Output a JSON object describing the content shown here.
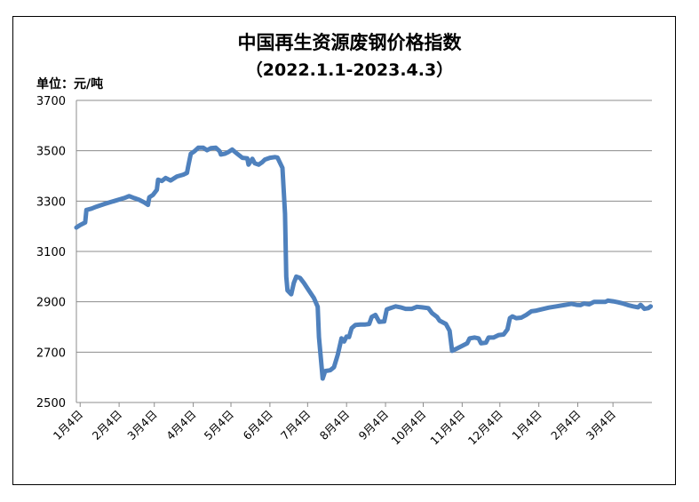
{
  "chart_data": {
    "type": "line",
    "title": "中国再生资源废钢价格指数",
    "subtitle": "（2022.1.1-2023.4.3）",
    "unit_label": "单位：元/吨",
    "ylim": [
      2500,
      3700
    ],
    "yticks": [
      2500,
      2700,
      2900,
      3100,
      3300,
      3500,
      3700
    ],
    "xticks": [
      "1月4日",
      "2月4日",
      "3月4日",
      "4月4日",
      "5月4日",
      "6月4日",
      "7月4日",
      "8月4日",
      "9月4日",
      "10月4日",
      "11月4日",
      "12月4日",
      "1月4日",
      "2月4日",
      "3月4日"
    ],
    "x_unit": "day index from 2022-01-01",
    "xlim": [
      0,
      458
    ],
    "xtick_days": [
      3,
      34,
      62,
      93,
      123,
      154,
      184,
      215,
      246,
      276,
      307,
      337,
      368,
      399,
      427
    ],
    "grid": true,
    "line_color": "#4f81bd",
    "series": [
      {
        "values": [
          [
            0,
            3195
          ],
          [
            3,
            3205
          ],
          [
            7,
            3215
          ],
          [
            8,
            3265
          ],
          [
            12,
            3270
          ],
          [
            16,
            3278
          ],
          [
            22,
            3288
          ],
          [
            30,
            3300
          ],
          [
            38,
            3312
          ],
          [
            42,
            3320
          ],
          [
            46,
            3312
          ],
          [
            50,
            3305
          ],
          [
            54,
            3295
          ],
          [
            57,
            3285
          ],
          [
            58,
            3315
          ],
          [
            61,
            3325
          ],
          [
            64,
            3345
          ],
          [
            65,
            3385
          ],
          [
            68,
            3380
          ],
          [
            71,
            3392
          ],
          [
            75,
            3382
          ],
          [
            80,
            3398
          ],
          [
            85,
            3405
          ],
          [
            88,
            3412
          ],
          [
            89,
            3438
          ],
          [
            91,
            3488
          ],
          [
            94,
            3498
          ],
          [
            97,
            3512
          ],
          [
            101,
            3512
          ],
          [
            104,
            3502
          ],
          [
            107,
            3510
          ],
          [
            111,
            3512
          ],
          [
            114,
            3498
          ],
          [
            115,
            3485
          ],
          [
            118,
            3488
          ],
          [
            121,
            3495
          ],
          [
            124,
            3505
          ],
          [
            128,
            3488
          ],
          [
            132,
            3472
          ],
          [
            136,
            3470
          ],
          [
            137,
            3445
          ],
          [
            140,
            3468
          ],
          [
            142,
            3450
          ],
          [
            145,
            3445
          ],
          [
            148,
            3455
          ],
          [
            150,
            3465
          ],
          [
            154,
            3472
          ],
          [
            158,
            3475
          ],
          [
            160,
            3473
          ],
          [
            164,
            3432
          ],
          [
            166,
            3250
          ],
          [
            167,
            3000
          ],
          [
            168,
            2945
          ],
          [
            171,
            2930
          ],
          [
            173,
            2975
          ],
          [
            175,
            3000
          ],
          [
            178,
            2995
          ],
          [
            181,
            2975
          ],
          [
            185,
            2945
          ],
          [
            189,
            2915
          ],
          [
            192,
            2880
          ],
          [
            193,
            2760
          ],
          [
            196,
            2595
          ],
          [
            198,
            2625
          ],
          [
            202,
            2628
          ],
          [
            205,
            2640
          ],
          [
            208,
            2690
          ],
          [
            211,
            2755
          ],
          [
            213,
            2742
          ],
          [
            215,
            2762
          ],
          [
            217,
            2760
          ],
          [
            219,
            2795
          ],
          [
            222,
            2808
          ],
          [
            226,
            2810
          ],
          [
            230,
            2810
          ],
          [
            233,
            2812
          ],
          [
            235,
            2840
          ],
          [
            238,
            2848
          ],
          [
            241,
            2820
          ],
          [
            245,
            2822
          ],
          [
            247,
            2870
          ],
          [
            250,
            2875
          ],
          [
            254,
            2882
          ],
          [
            258,
            2878
          ],
          [
            262,
            2872
          ],
          [
            267,
            2872
          ],
          [
            271,
            2880
          ],
          [
            275,
            2878
          ],
          [
            280,
            2875
          ],
          [
            283,
            2855
          ],
          [
            287,
            2840
          ],
          [
            289,
            2825
          ],
          [
            294,
            2812
          ],
          [
            297,
            2785
          ],
          [
            299,
            2705
          ],
          [
            303,
            2715
          ],
          [
            307,
            2725
          ],
          [
            311,
            2735
          ],
          [
            313,
            2755
          ],
          [
            317,
            2758
          ],
          [
            320,
            2755
          ],
          [
            322,
            2735
          ],
          [
            326,
            2738
          ],
          [
            328,
            2758
          ],
          [
            332,
            2758
          ],
          [
            336,
            2768
          ],
          [
            340,
            2770
          ],
          [
            343,
            2790
          ],
          [
            345,
            2835
          ],
          [
            347,
            2842
          ],
          [
            350,
            2835
          ],
          [
            354,
            2837
          ],
          [
            358,
            2848
          ],
          [
            362,
            2862
          ],
          [
            366,
            2865
          ],
          [
            370,
            2870
          ],
          [
            376,
            2877
          ],
          [
            382,
            2882
          ],
          [
            388,
            2887
          ],
          [
            394,
            2892
          ],
          [
            398,
            2888
          ],
          [
            401,
            2887
          ],
          [
            404,
            2893
          ],
          [
            408,
            2890
          ],
          [
            412,
            2900
          ],
          [
            418,
            2900
          ],
          [
            421,
            2900
          ],
          [
            423,
            2905
          ],
          [
            427,
            2902
          ],
          [
            431,
            2898
          ],
          [
            435,
            2893
          ],
          [
            439,
            2887
          ],
          [
            443,
            2882
          ],
          [
            447,
            2878
          ],
          [
            449,
            2888
          ],
          [
            452,
            2872
          ],
          [
            455,
            2875
          ],
          [
            457,
            2882
          ]
        ]
      }
    ]
  }
}
